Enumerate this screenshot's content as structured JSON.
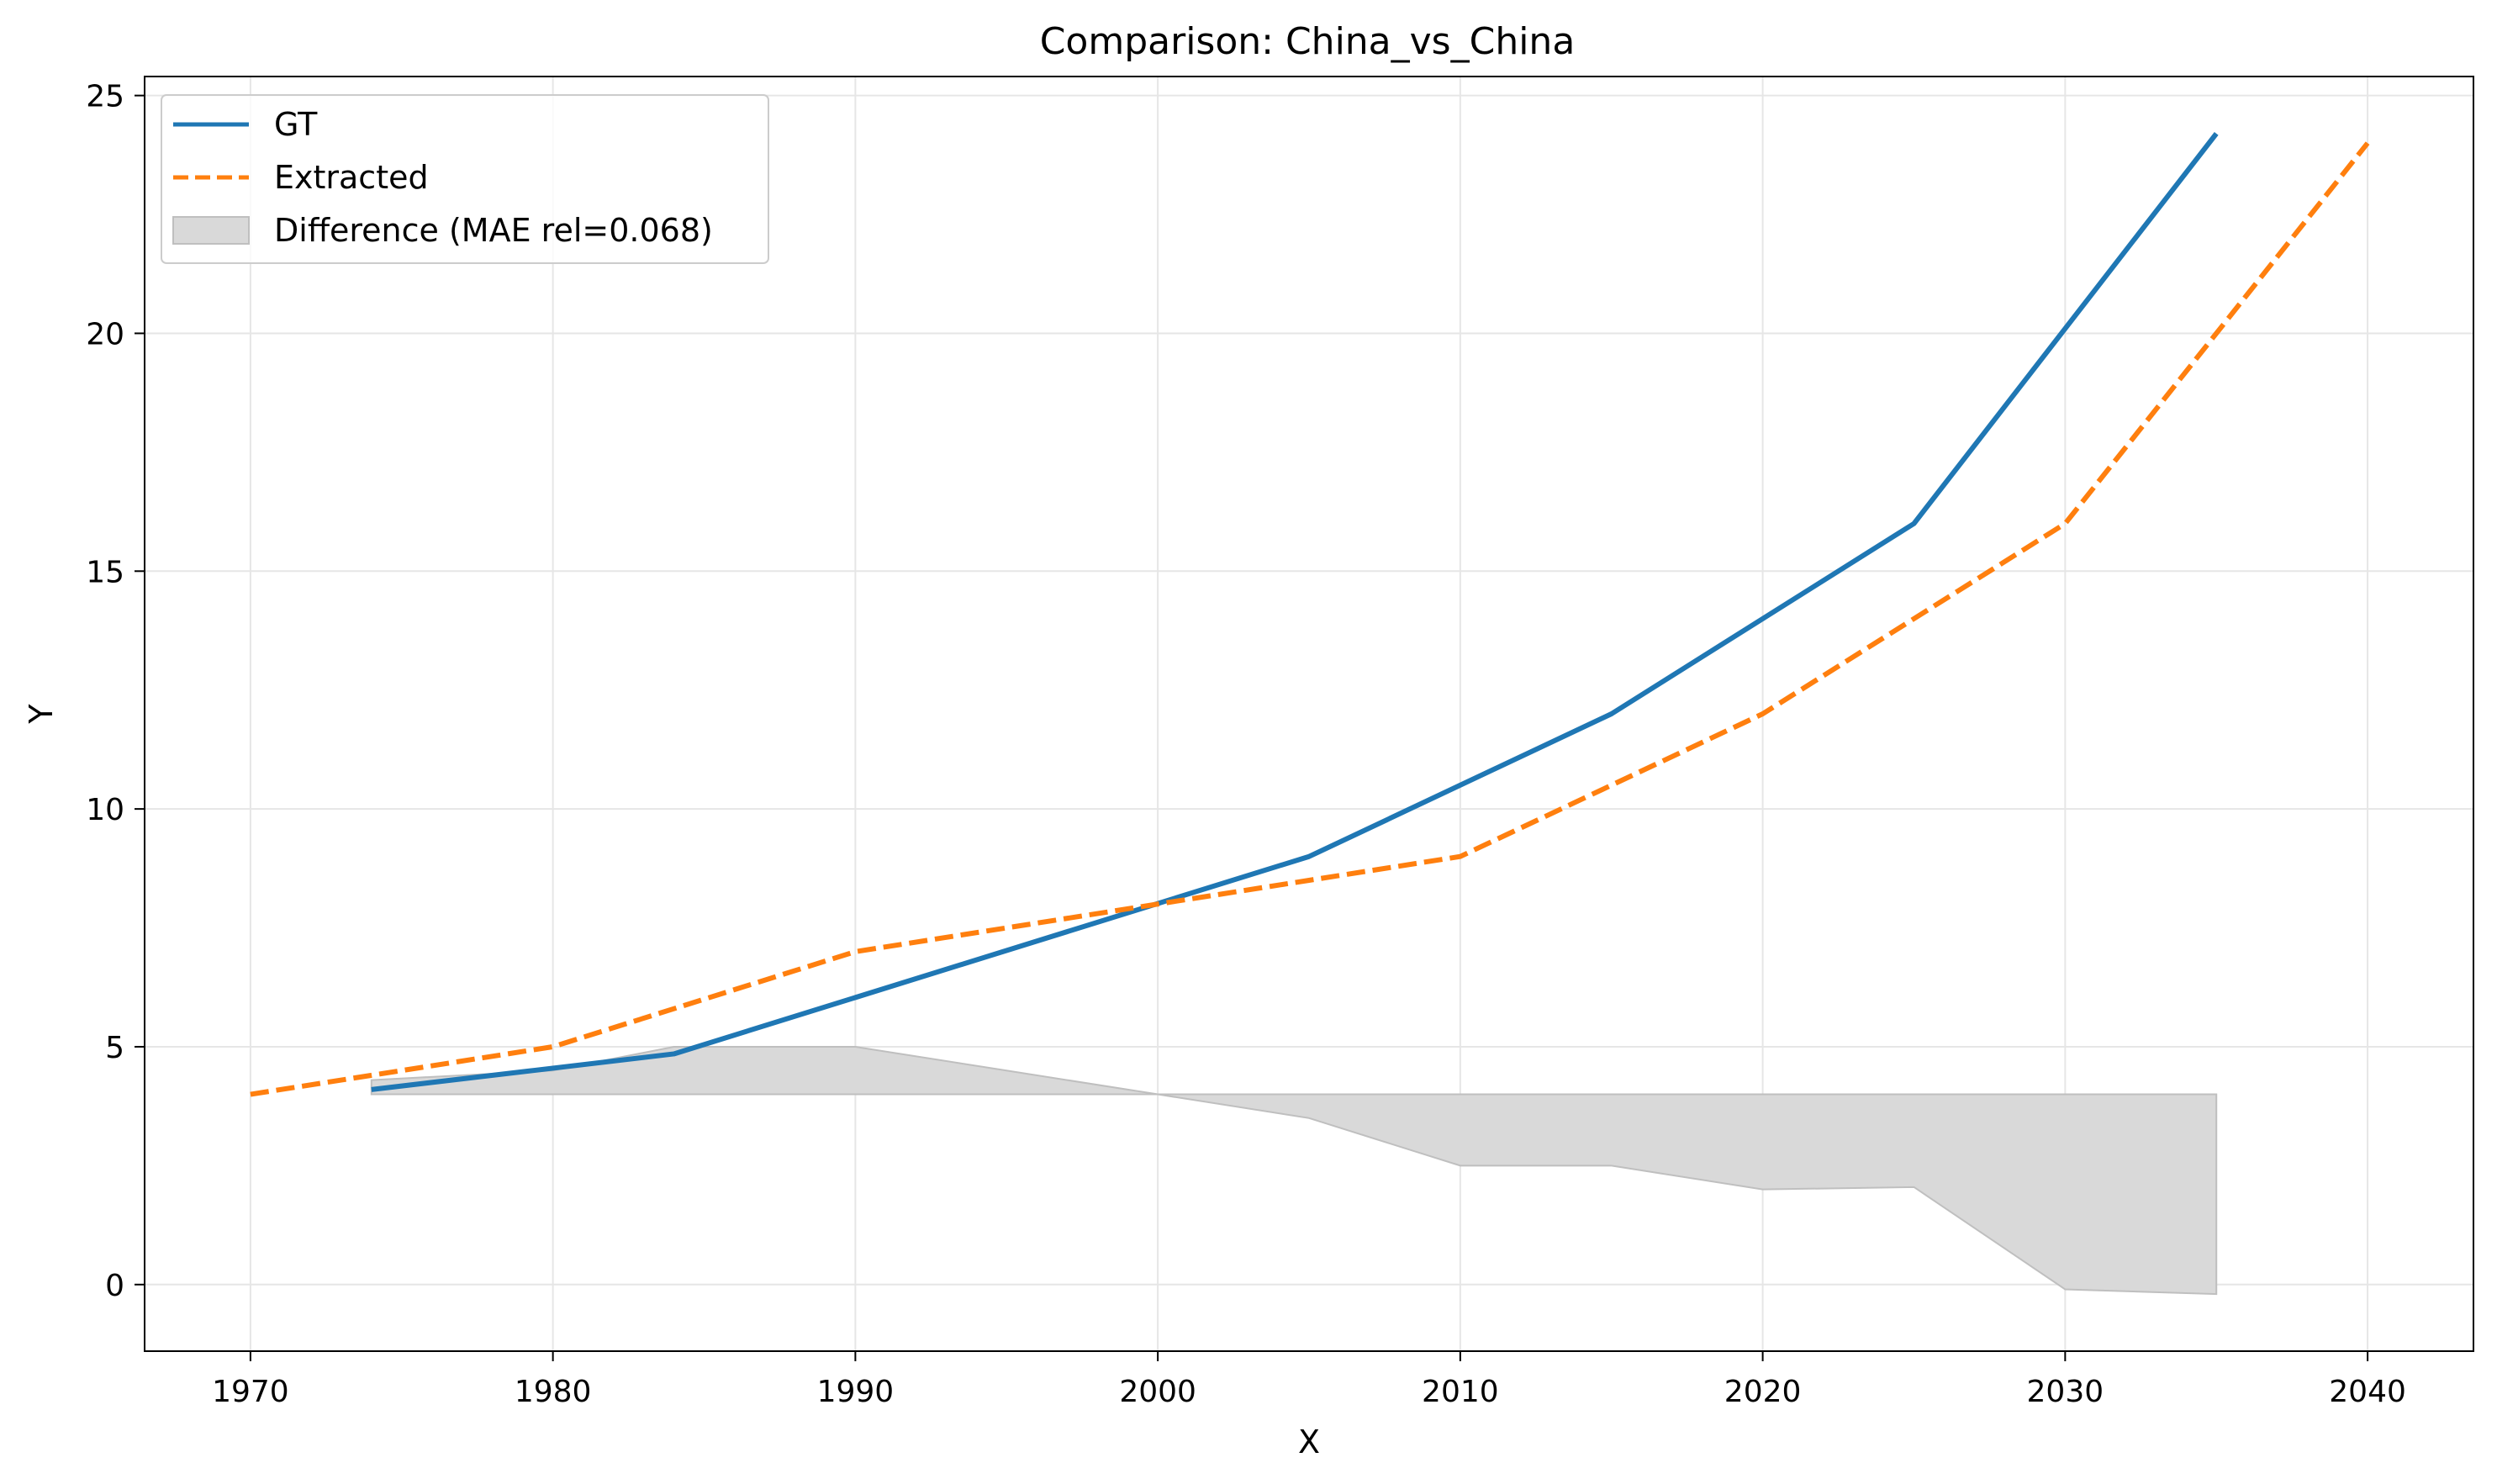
{
  "chart_data": {
    "type": "line",
    "title": "Comparison: China_vs_China",
    "xlabel": "X",
    "ylabel": "Y",
    "xlim": [
      1966.5,
      2043.5
    ],
    "ylim": [
      -1.4,
      25.4
    ],
    "x_ticks": [
      1970,
      1980,
      1990,
      2000,
      2010,
      2020,
      2030,
      2040
    ],
    "y_ticks": [
      0,
      5,
      10,
      15,
      20,
      25
    ],
    "grid": true,
    "legend_position": "top-left",
    "series": [
      {
        "name": "GT",
        "color": "#1f77b4",
        "style": "solid",
        "x": [
          1974,
          1984,
          2005,
          2015,
          2025,
          2035
        ],
        "y": [
          4.1,
          4.85,
          9.0,
          12.0,
          16.0,
          24.2
        ]
      },
      {
        "name": "Extracted",
        "color": "#ff7f0e",
        "style": "dashed",
        "x": [
          1970,
          1980,
          1990,
          2000,
          2005,
          2010,
          2020,
          2025,
          2030,
          2040
        ],
        "y": [
          4.0,
          5.0,
          7.0,
          8.0,
          8.5,
          9.0,
          12.0,
          14.0,
          16.0,
          24.0
        ]
      }
    ],
    "difference_band": {
      "name": "Difference (MAE rel=0.068)",
      "color": "#bfbfbf",
      "baseline": 4.0,
      "x": [
        1974,
        1980,
        1984,
        1990,
        2000,
        2005,
        2010,
        2015,
        2020,
        2025,
        2030,
        2035
      ],
      "y": [
        4.3,
        4.5,
        5.0,
        5.0,
        4.0,
        3.5,
        2.5,
        2.5,
        2.0,
        2.05,
        -0.1,
        -0.2
      ]
    }
  }
}
